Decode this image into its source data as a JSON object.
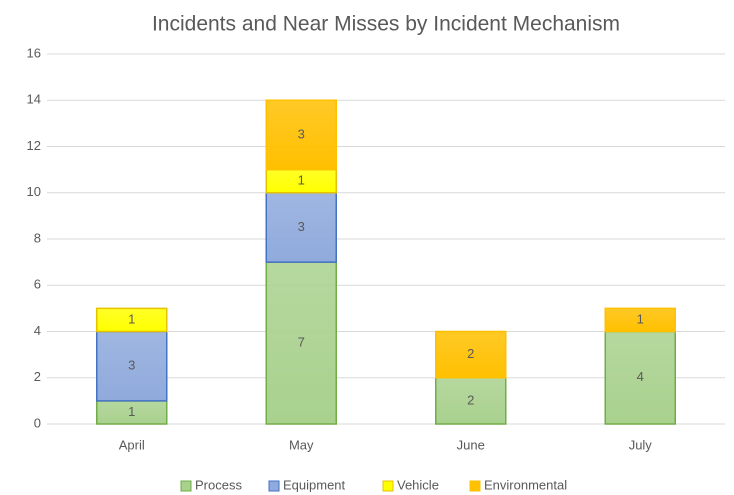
{
  "chart_data": {
    "type": "stacked_bar",
    "title": "Incidents and Near Misses by Incident Mechanism",
    "categories": [
      "April",
      "May",
      "June",
      "July"
    ],
    "series": [
      {
        "name": "Process",
        "color": "#a9d18e",
        "border": "#70ad47",
        "values": [
          1,
          7,
          2,
          4
        ]
      },
      {
        "name": "Equipment",
        "color": "#8faadc",
        "border": "#4472c4",
        "values": [
          3,
          3,
          0,
          0
        ]
      },
      {
        "name": "Vehicle",
        "color": "#ffff00",
        "border": "#e6c300",
        "values": [
          1,
          1,
          0,
          0
        ]
      },
      {
        "name": "Environmental",
        "color": "#ffc000",
        "border": "#ffc000",
        "values": [
          0,
          3,
          2,
          1
        ]
      }
    ],
    "ylim": [
      0,
      16
    ],
    "yticks": [
      0,
      2,
      4,
      6,
      8,
      10,
      12,
      14,
      16
    ],
    "grid": true,
    "legend": "bottom"
  }
}
